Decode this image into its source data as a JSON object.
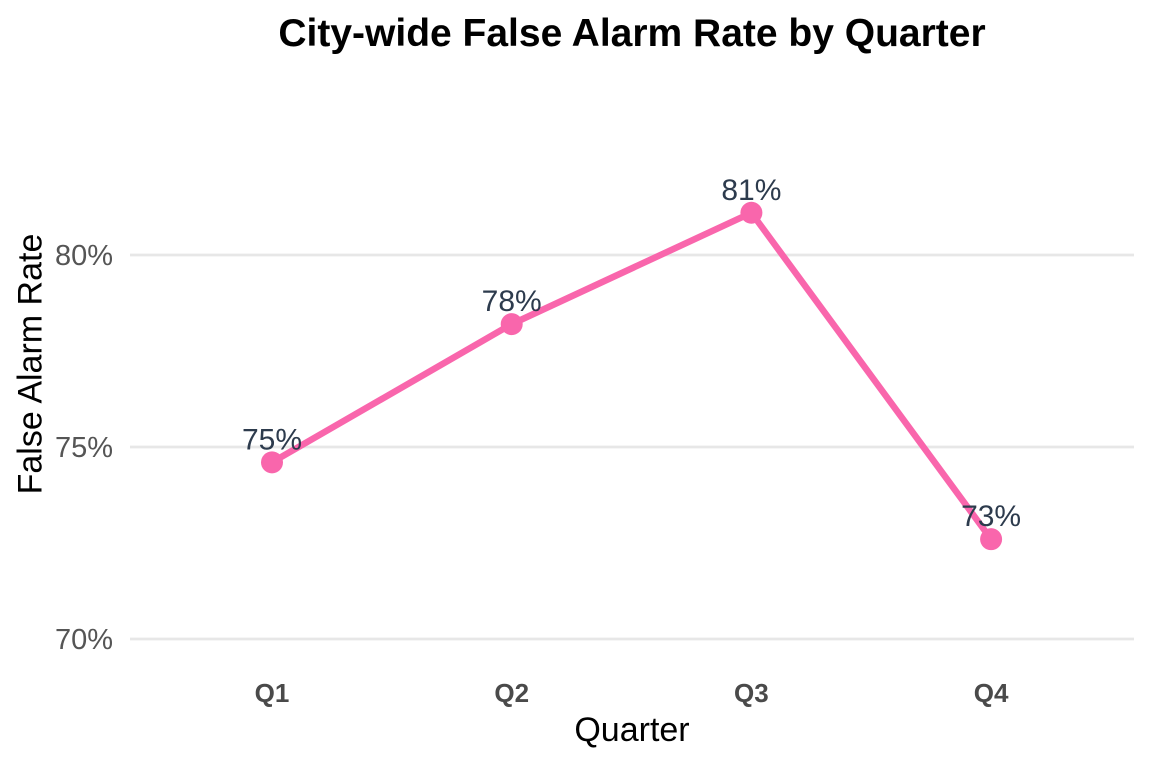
{
  "chart_data": {
    "type": "line",
    "title": "City-wide False Alarm Rate by Quarter",
    "xlabel": "Quarter",
    "ylabel": "False Alarm Rate",
    "categories": [
      "Q1",
      "Q2",
      "Q3",
      "Q4"
    ],
    "values": [
      74.6,
      78.2,
      81.1,
      72.6
    ],
    "data_labels": [
      "75%",
      "78%",
      "81%",
      "73%"
    ],
    "yticks": [
      {
        "value": 70,
        "label": "70%"
      },
      {
        "value": 75,
        "label": "75%"
      },
      {
        "value": 80,
        "label": "80%"
      }
    ],
    "ylim": [
      69.5,
      84.5
    ],
    "grid": "horizontal",
    "legend": "none",
    "colors": {
      "line": "#f966ac",
      "point": "#f966ac",
      "data_label": "#2d3b4d",
      "axis_text_y": "#555555",
      "axis_text_x": "#4a4a4a",
      "grid": "#e7e7e7",
      "title": "#000000",
      "background": "#ffffff"
    }
  }
}
